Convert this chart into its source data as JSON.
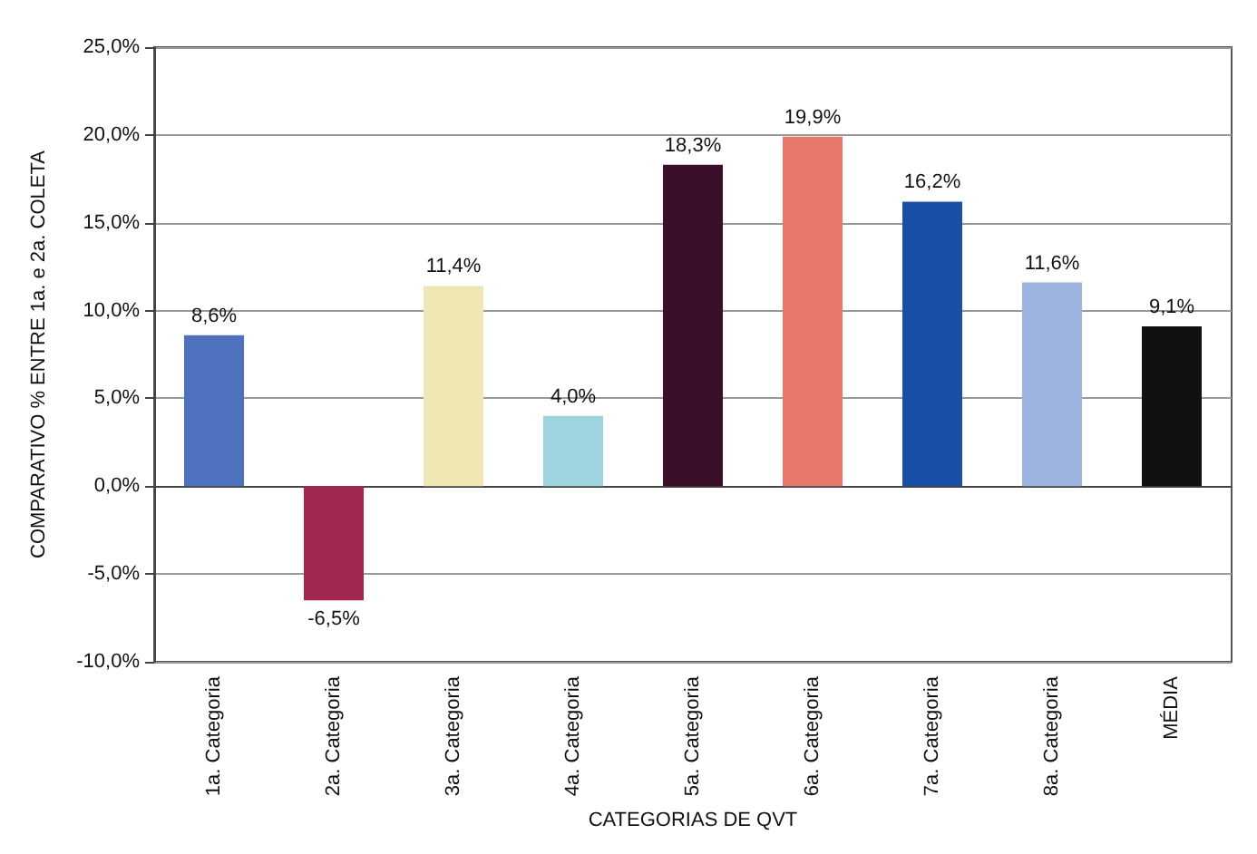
{
  "chart_data": {
    "type": "bar",
    "xlabel": "CATEGORIAS DE QVT",
    "ylabel": "COMPARATIVO % ENTRE 1a. e 2a. COLETA",
    "categories": [
      "1a. Categoria",
      "2a. Categoria",
      "3a. Categoria",
      "4a. Categoria",
      "5a. Categoria",
      "6a. Categoria",
      "7a. Categoria",
      "8a. Categoria",
      "MÉDIA"
    ],
    "values": [
      8.6,
      -6.5,
      11.4,
      4.0,
      18.3,
      19.9,
      16.2,
      11.6,
      9.1
    ],
    "colors": [
      "#4f72be",
      "#a0284f",
      "#efe6b4",
      "#9fd4df",
      "#3a0f2a",
      "#e8796a",
      "#1a4fa8",
      "#9db3e0",
      "#111111"
    ],
    "value_labels": [
      "8,6%",
      "-6,5%",
      "11,4%",
      "4,0%",
      "18,3%",
      "19,9%",
      "16,2%",
      "11,6%",
      "9,1%"
    ],
    "ylim": [
      -10,
      25
    ],
    "yticks": [
      {
        "value": -10,
        "label": "-10,0%"
      },
      {
        "value": -5,
        "label": "-5,0%"
      },
      {
        "value": 0,
        "label": "0,0%"
      },
      {
        "value": 5,
        "label": "5,0%"
      },
      {
        "value": 10,
        "label": "10,0%"
      },
      {
        "value": 15,
        "label": "15,0%"
      },
      {
        "value": 20,
        "label": "20,0%"
      },
      {
        "value": 25,
        "label": "25,0%"
      }
    ],
    "grid": "y"
  }
}
